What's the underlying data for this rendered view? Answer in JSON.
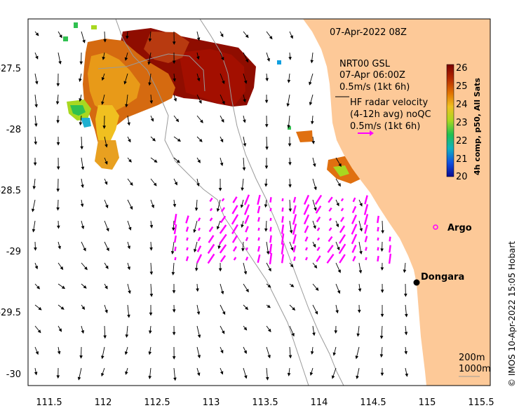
{
  "map": {
    "date_label": "07-Apr-2022 08Z",
    "legend": {
      "model_title": "NRT00 GSL",
      "model_time": "07-Apr 06:00Z",
      "model_scale": "0.5m/s (1kt 6h)",
      "radar_line1": "HF radar velocity",
      "radar_line2": "(4-12h avg) noQC",
      "radar_scale": "0.5m/s (1kt 6h)"
    },
    "colorbar": {
      "title": "4h comp, p50, All Sats",
      "ticks": [
        "26",
        "25",
        "24",
        "23",
        "22",
        "21",
        "20"
      ],
      "colors": [
        "#7a0000",
        "#b52a00",
        "#e07000",
        "#f0c020",
        "#a8d820",
        "#20c050",
        "#10b0c0",
        "#1050e0",
        "#0a0a90"
      ]
    },
    "places": [
      {
        "name": "Argo"
      },
      {
        "name": "Dongara"
      }
    ],
    "isobaths": [
      "200m",
      "1000m"
    ],
    "credit": "© IMOS 10-Apr-2022 15:05 Hobart",
    "x_ticks": [
      "111.5",
      "112",
      "112.5",
      "113",
      "113.5",
      "114",
      "114.5",
      "115",
      "115.5"
    ],
    "y_ticks": [
      "-27.5",
      "-28",
      "-28.5",
      "-29",
      "-29.5",
      "-30"
    ],
    "colors": {
      "land": "#fdc998",
      "radar": "#ff00ff",
      "isobath": "#9a9a9a"
    }
  }
}
